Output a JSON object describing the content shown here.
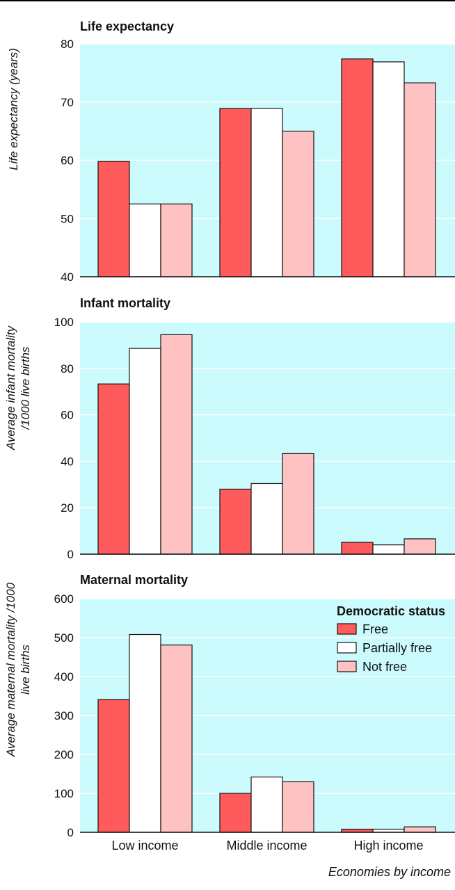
{
  "colors": {
    "plot_background": "#ccfbfe",
    "grid": "#ffffff",
    "series": [
      "#ff5a5c",
      "#ffffff",
      "#ffc2c3"
    ]
  },
  "xlabel": "Economies by income",
  "chart_data": [
    {
      "type": "bar",
      "title": "Life expectancy",
      "ylabel": "Life expectancy (years)",
      "ylim": [
        40,
        80
      ],
      "yticks": [
        40,
        50,
        60,
        70,
        80
      ],
      "categories": [
        "Low income",
        "Middle income",
        "High income"
      ],
      "show_category_labels": false,
      "series": [
        {
          "name": "Free",
          "values": [
            59.8,
            68.9,
            77.4
          ]
        },
        {
          "name": "Partially free",
          "values": [
            52.5,
            68.9,
            76.9
          ]
        },
        {
          "name": "Not free",
          "values": [
            52.5,
            65.0,
            73.3
          ]
        }
      ],
      "grid": true
    },
    {
      "type": "bar",
      "title": "Infant mortality",
      "ylabel": "Average infant mortality /1000 live births",
      "ylim": [
        0,
        100
      ],
      "yticks": [
        0,
        20,
        40,
        60,
        80,
        100
      ],
      "categories": [
        "Low income",
        "Middle income",
        "High income"
      ],
      "show_category_labels": false,
      "series": [
        {
          "name": "Free",
          "values": [
            73.3,
            28.0,
            5.1
          ]
        },
        {
          "name": "Partially free",
          "values": [
            88.6,
            30.4,
            4.0
          ]
        },
        {
          "name": "Not free",
          "values": [
            94.5,
            43.3,
            6.6
          ]
        }
      ],
      "grid": true
    },
    {
      "type": "bar",
      "title": "Maternal mortality",
      "ylabel": "Average maternal mortality /1000 live births",
      "ylim": [
        0,
        600
      ],
      "yticks": [
        0,
        100,
        200,
        300,
        400,
        500,
        600
      ],
      "categories": [
        "Low income",
        "Middle income",
        "High income"
      ],
      "show_category_labels": true,
      "series": [
        {
          "name": "Free",
          "values": [
            341,
            100,
            8
          ]
        },
        {
          "name": "Partially free",
          "values": [
            508,
            142,
            8
          ]
        },
        {
          "name": "Not free",
          "values": [
            481,
            130,
            14
          ]
        }
      ],
      "legend": {
        "title": "Democratic status",
        "position": "top-right",
        "items": [
          "Free",
          "Partially free",
          "Not free"
        ]
      },
      "grid": true
    }
  ]
}
